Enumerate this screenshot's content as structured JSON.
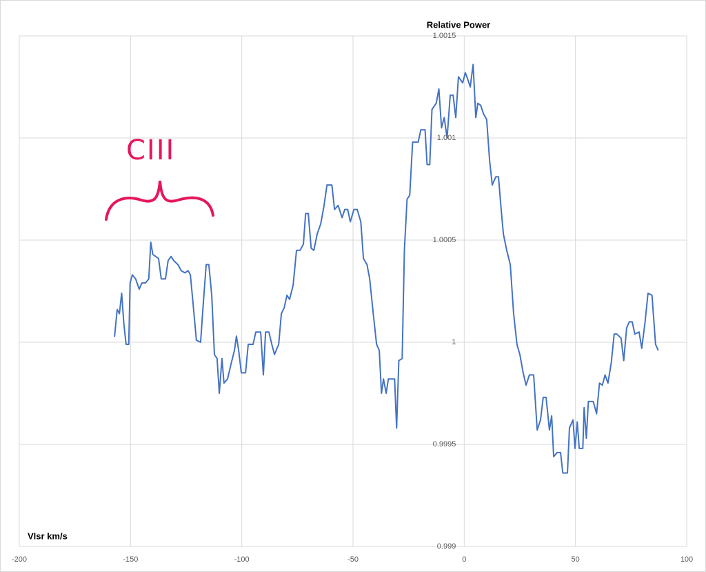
{
  "chart_data": {
    "type": "line",
    "y_label": "Relative Power",
    "x_label": "Vlsr km/s",
    "annotation": "CIII",
    "xlim": [
      -200,
      100
    ],
    "xticks": [
      -200,
      -150,
      -100,
      -50,
      0,
      50,
      100
    ],
    "ylim": [
      0.999,
      1.0015
    ],
    "yticks": [
      0.999,
      0.9995,
      1,
      1.0005,
      1.001,
      1.0015
    ],
    "grid": true,
    "x": [
      -157.2,
      -156,
      -155,
      -154,
      -153,
      -152,
      -150.8,
      -150.2,
      -149.2,
      -147.7,
      -146.1,
      -144.9,
      -143.3,
      -141.8,
      -140.9,
      -140,
      -138.7,
      -137.4,
      -136.2,
      -134.3,
      -133.1,
      -131.8,
      -130.6,
      -128.7,
      -127.2,
      -125.6,
      -124.1,
      -123.1,
      -121.9,
      -120.4,
      -118.5,
      -117.3,
      -116,
      -114.8,
      -113.5,
      -112.3,
      -111.1,
      -110.1,
      -108.9,
      -108,
      -106.4,
      -104.9,
      -103.3,
      -102.4,
      -101.4,
      -100.2,
      -98.3,
      -97.1,
      -94.9,
      -93.7,
      -91.5,
      -90.3,
      -89.3,
      -87.8,
      -86.5,
      -85.3,
      -83.4,
      -82.2,
      -80.9,
      -79.7,
      -78.5,
      -76.9,
      -75.4,
      -73.8,
      -72.3,
      -71.3,
      -70.1,
      -68.8,
      -67.6,
      -66.1,
      -64.5,
      -63,
      -61.7,
      -59.5,
      -58.3,
      -56.7,
      -54.9,
      -53.7,
      -52.4,
      -51.2,
      -49.6,
      -48.1,
      -46.5,
      -45.3,
      -43.7,
      -42.5,
      -40.9,
      -39.4,
      -38.2,
      -37.2,
      -36.3,
      -35.1,
      -34.1,
      -31.3,
      -30.4,
      -29.4,
      -27.9,
      -26.9,
      -25.7,
      -24.5,
      -23.2,
      -20.7,
      -19.5,
      -17.6,
      -16.7,
      -15.5,
      -14.5,
      -12.6,
      -11.4,
      -10.2,
      -9,
      -7.7,
      -6.3,
      -5,
      -3.8,
      -2.6,
      -0.7,
      0.5,
      1.5,
      2.7,
      4,
      5.2,
      6.1,
      7.4,
      8.6,
      10.1,
      11.4,
      12.6,
      14.2,
      15.4,
      16.6,
      17.6,
      19.1,
      20.7,
      22.2,
      23.7,
      25,
      26.5,
      27.8,
      29.3,
      31.2,
      32.8,
      34.3,
      35.5,
      36.8,
      38.3,
      39.3,
      40.2,
      41.8,
      43.3,
      44.3,
      46.4,
      47.3,
      48.9,
      49.8,
      50.8,
      51.7,
      53.3,
      53.9,
      54.9,
      55.8,
      58,
      59.5,
      60.8,
      62.1,
      63.3,
      64.6,
      66.1,
      67.4,
      68.6,
      70.5,
      71.7,
      73,
      74.2,
      75.5,
      76.7,
      78.6,
      79.8,
      81.3,
      82.6,
      84.4,
      86,
      87.2
    ],
    "series": [
      {
        "color": "#4472c4",
        "values": [
          1.000027,
          1.00016,
          1.00014,
          1.00024,
          1.00009,
          0.99999,
          0.99999,
          1.00029,
          1.00033,
          1.00031,
          1.00026,
          1.00029,
          1.00029,
          1.00031,
          1.00049,
          1.00043,
          1.00042,
          1.00041,
          1.00031,
          1.00031,
          1.0004,
          1.00042,
          1.0004,
          1.00038,
          1.00035,
          1.00034,
          1.00035,
          1.00033,
          1.00019,
          1.00001,
          1.0,
          1.00019,
          1.00038,
          1.00038,
          1.00023,
          0.99994,
          0.99992,
          0.99975,
          0.99992,
          0.9998,
          0.99982,
          0.99989,
          0.99996,
          1.00003,
          0.99996,
          0.99985,
          0.99985,
          0.99999,
          0.99999,
          1.00005,
          1.00005,
          0.99984,
          1.00005,
          1.00005,
          0.99999,
          0.99994,
          0.99999,
          1.00014,
          1.00017,
          1.00023,
          1.00021,
          1.00028,
          1.00045,
          1.00045,
          1.00048,
          1.00063,
          1.00063,
          1.00046,
          1.00045,
          1.00053,
          1.00058,
          1.00067,
          1.00077,
          1.00077,
          1.00065,
          1.00067,
          1.00061,
          1.00065,
          1.00065,
          1.00059,
          1.00065,
          1.00065,
          1.00059,
          1.00041,
          1.00038,
          1.00031,
          1.00014,
          0.99999,
          0.99996,
          0.99975,
          0.99982,
          0.99975,
          0.99982,
          0.99982,
          0.99958,
          0.99991,
          0.99992,
          1.00045,
          1.0007,
          1.00072,
          1.00098,
          1.00098,
          1.00104,
          1.00104,
          1.00087,
          1.00087,
          1.00114,
          1.00117,
          1.00124,
          1.00105,
          1.0011,
          1.001,
          1.00121,
          1.00121,
          1.0011,
          1.0013,
          1.00127,
          1.00132,
          1.00129,
          1.00125,
          1.00136,
          1.0011,
          1.00117,
          1.00116,
          1.00112,
          1.00109,
          1.00089,
          1.00077,
          1.00081,
          1.00081,
          1.00065,
          1.00053,
          1.00045,
          1.00038,
          1.00014,
          0.99999,
          0.99994,
          0.99985,
          0.99979,
          0.99984,
          0.99984,
          0.99957,
          0.99962,
          0.99973,
          0.99973,
          0.99957,
          0.99964,
          0.99944,
          0.99946,
          0.99946,
          0.99936,
          0.99936,
          0.99958,
          0.99962,
          0.99948,
          0.99961,
          0.99948,
          0.99948,
          0.99968,
          0.99953,
          0.99971,
          0.99971,
          0.99965,
          0.9998,
          0.99979,
          0.99984,
          0.9998,
          0.9999,
          1.00004,
          1.00004,
          1.00002,
          0.99991,
          1.00007,
          1.0001,
          1.0001,
          1.00004,
          1.00005,
          0.99997,
          1.0001,
          1.00024,
          1.00023,
          0.99999,
          0.99996
        ]
      }
    ]
  }
}
